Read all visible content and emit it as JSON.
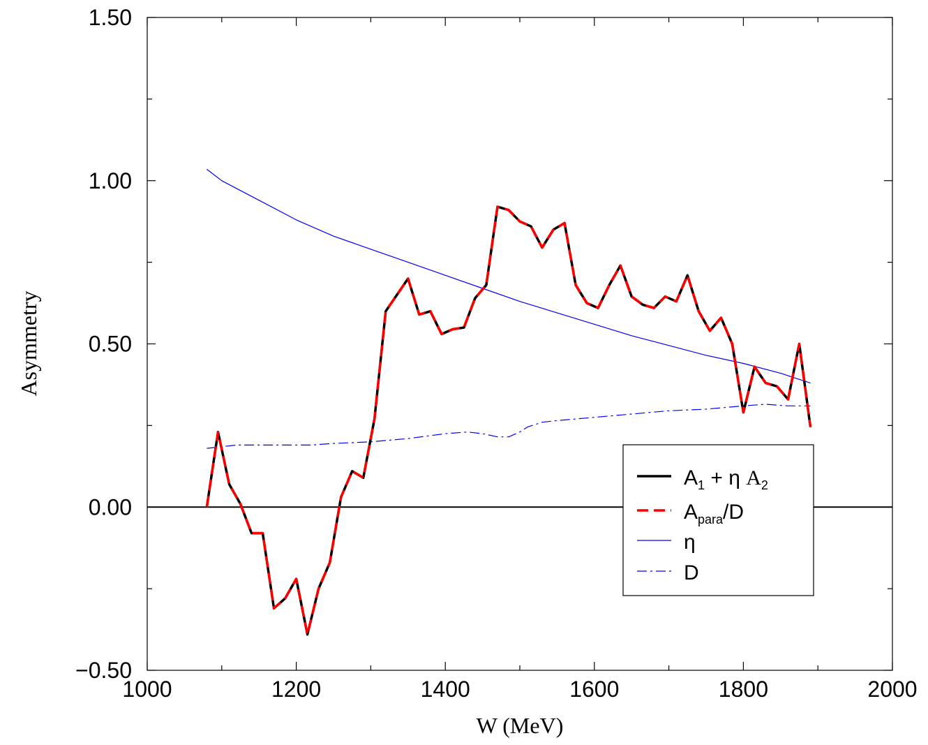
{
  "chart_data": {
    "type": "line",
    "xlabel": "W (MeV)",
    "ylabel": "Asymmetry",
    "xlim": [
      1000,
      2000
    ],
    "ylim": [
      -0.5,
      1.5
    ],
    "x_ticks": [
      "1000",
      "1200",
      "1400",
      "1600",
      "1800",
      "2000"
    ],
    "y_ticks": [
      "−0.50",
      "0.00",
      "0.50",
      "1.00",
      "1.50"
    ],
    "grid": false,
    "zero_line": true,
    "legend_position": "right",
    "legend_labels": {
      "a1": {
        "main": "A",
        "sub": "1",
        "mid": " + η ",
        "tail": "A",
        "tail_sub": "2"
      },
      "apara": {
        "main": "A",
        "sub": "para",
        "tail": "/D"
      },
      "eta": "η",
      "d": "D"
    },
    "colors": {
      "a1": "#000000",
      "apara": "#ff0000",
      "eta": "#0000ff",
      "d": "#0000ff"
    },
    "series": [
      {
        "key": "a1",
        "style": "solid",
        "x": [
          1080,
          1095,
          1110,
          1125,
          1140,
          1155,
          1170,
          1185,
          1200,
          1215,
          1230,
          1245,
          1260,
          1275,
          1290,
          1305,
          1320,
          1335,
          1350,
          1365,
          1380,
          1395,
          1410,
          1425,
          1440,
          1455,
          1470,
          1485,
          1500,
          1515,
          1530,
          1545,
          1560,
          1575,
          1590,
          1605,
          1620,
          1635,
          1650,
          1665,
          1680,
          1695,
          1710,
          1725,
          1740,
          1755,
          1770,
          1785,
          1800,
          1815,
          1830,
          1845,
          1860,
          1875,
          1890
        ],
        "y": [
          0.0,
          0.23,
          0.07,
          0.01,
          -0.08,
          -0.08,
          -0.31,
          -0.28,
          -0.22,
          -0.39,
          -0.25,
          -0.17,
          0.03,
          0.11,
          0.09,
          0.27,
          0.6,
          0.65,
          0.7,
          0.59,
          0.6,
          0.53,
          0.545,
          0.55,
          0.64,
          0.68,
          0.92,
          0.91,
          0.875,
          0.86,
          0.795,
          0.85,
          0.87,
          0.68,
          0.625,
          0.61,
          0.68,
          0.74,
          0.645,
          0.62,
          0.61,
          0.645,
          0.63,
          0.71,
          0.6,
          0.54,
          0.58,
          0.5,
          0.29,
          0.43,
          0.38,
          0.37,
          0.33,
          0.5,
          0.245
        ]
      },
      {
        "key": "apara",
        "style": "dashed",
        "x": [
          1080,
          1095,
          1110,
          1125,
          1140,
          1155,
          1170,
          1185,
          1200,
          1215,
          1230,
          1245,
          1260,
          1275,
          1290,
          1305,
          1320,
          1335,
          1350,
          1365,
          1380,
          1395,
          1410,
          1425,
          1440,
          1455,
          1470,
          1485,
          1500,
          1515,
          1530,
          1545,
          1560,
          1575,
          1590,
          1605,
          1620,
          1635,
          1650,
          1665,
          1680,
          1695,
          1710,
          1725,
          1740,
          1755,
          1770,
          1785,
          1800,
          1815,
          1830,
          1845,
          1860,
          1875,
          1890
        ],
        "y": [
          0.0,
          0.23,
          0.07,
          0.01,
          -0.08,
          -0.08,
          -0.31,
          -0.28,
          -0.22,
          -0.39,
          -0.25,
          -0.17,
          0.03,
          0.11,
          0.09,
          0.27,
          0.6,
          0.65,
          0.7,
          0.59,
          0.6,
          0.53,
          0.545,
          0.55,
          0.64,
          0.68,
          0.92,
          0.91,
          0.875,
          0.86,
          0.795,
          0.85,
          0.87,
          0.68,
          0.625,
          0.61,
          0.68,
          0.74,
          0.645,
          0.62,
          0.61,
          0.645,
          0.63,
          0.71,
          0.6,
          0.54,
          0.58,
          0.5,
          0.29,
          0.43,
          0.38,
          0.37,
          0.33,
          0.5,
          0.245
        ]
      },
      {
        "key": "eta",
        "style": "solid-thin",
        "x": [
          1080,
          1100,
          1125,
          1150,
          1200,
          1250,
          1300,
          1350,
          1400,
          1450,
          1500,
          1550,
          1600,
          1650,
          1700,
          1750,
          1800,
          1850,
          1890
        ],
        "y": [
          1.035,
          1.0,
          0.97,
          0.94,
          0.88,
          0.83,
          0.79,
          0.75,
          0.71,
          0.67,
          0.63,
          0.595,
          0.56,
          0.525,
          0.495,
          0.465,
          0.44,
          0.41,
          0.38
        ]
      },
      {
        "key": "d",
        "style": "dashed-thin",
        "x": [
          1080,
          1100,
          1120,
          1150,
          1200,
          1220,
          1250,
          1300,
          1350,
          1400,
          1430,
          1450,
          1470,
          1485,
          1500,
          1510,
          1530,
          1550,
          1600,
          1650,
          1700,
          1750,
          1800,
          1830,
          1860,
          1890
        ],
        "y": [
          0.18,
          0.185,
          0.19,
          0.19,
          0.19,
          0.19,
          0.195,
          0.2,
          0.21,
          0.225,
          0.23,
          0.225,
          0.215,
          0.215,
          0.23,
          0.245,
          0.26,
          0.265,
          0.275,
          0.285,
          0.295,
          0.3,
          0.31,
          0.315,
          0.31,
          0.31
        ]
      }
    ]
  }
}
